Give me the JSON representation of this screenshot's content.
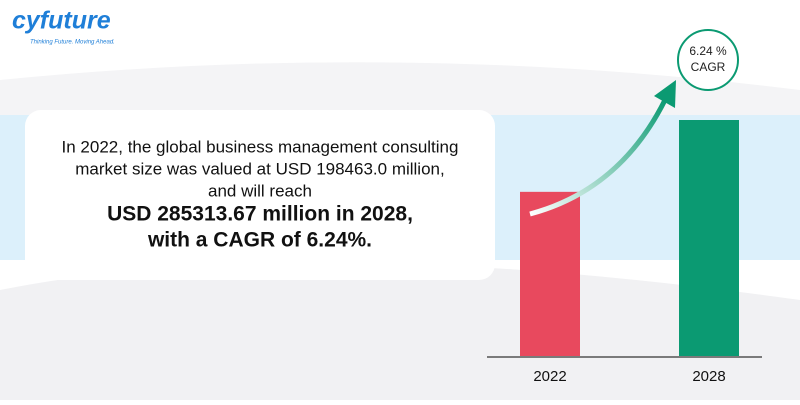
{
  "logo": {
    "name": "cyfuture",
    "tagline": "Thinking Future. Moving Ahead."
  },
  "callout": {
    "lines": [
      "In 2022, the global business management consulting",
      "market size was valued at USD 198463.0 million,",
      "and will reach"
    ],
    "highlight": [
      "USD 285313.67 million in 2028,",
      "with a CAGR of 6.24%."
    ]
  },
  "chart_data": {
    "type": "bar",
    "categories": [
      "2022",
      "2028"
    ],
    "values": [
      198463.0,
      285313.67
    ],
    "colors": [
      "#e8495e",
      "#0b9a72"
    ],
    "annotation": {
      "value": "6.24 %",
      "label": "CAGR",
      "color": "#0b9a72"
    }
  }
}
